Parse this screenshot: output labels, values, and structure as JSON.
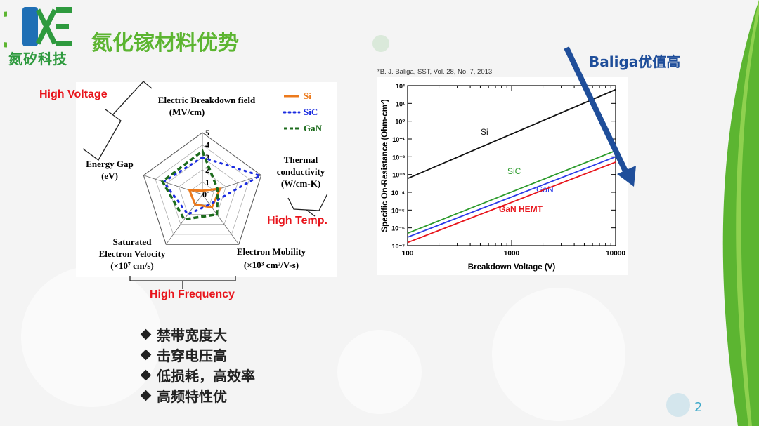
{
  "header": {
    "title": "氮化镓材料优势",
    "logo_text": "氮矽科技"
  },
  "baliga_label": "Baliga优值高",
  "page_number": "2",
  "annotations": {
    "high_voltage": "High Voltage",
    "high_temp": "High Temp.",
    "high_frequency": "High Frequency"
  },
  "radar": {
    "legend": [
      "Si",
      "SiC",
      "GaN"
    ],
    "axes": {
      "breakdown": [
        "Electric Breakdown field",
        "(MV/cm)"
      ],
      "thermal": [
        "Thermal",
        "conductivity",
        "(W/cm-K)"
      ],
      "mobility": [
        "Electron Mobility",
        "(×10³ cm²/V-s)"
      ],
      "velocity": [
        "Saturated",
        "Electron Velocity",
        "(×10⁷ cm/s)"
      ],
      "gap": [
        "Energy Gap",
        "(eV)"
      ]
    },
    "ticks": [
      "0",
      "1",
      "2",
      "3",
      "4",
      "5"
    ]
  },
  "chart_data": [
    {
      "type": "radar",
      "axes": [
        "Electric Breakdown field (MV/cm)",
        "Thermal conductivity (W/cm-K)",
        "Electron Mobility (×10³ cm²/V-s)",
        "Saturated Electron Velocity (×10⁷ cm/s)",
        "Energy Gap (eV)"
      ],
      "range": [
        0,
        5
      ],
      "series": [
        {
          "name": "Si",
          "values": [
            0.3,
            1.5,
            1.3,
            1.0,
            1.1
          ],
          "color": "#ec7a1c"
        },
        {
          "name": "SiC",
          "values": [
            3.0,
            4.9,
            1.0,
            2.0,
            3.3
          ],
          "color": "#1a2be0"
        },
        {
          "name": "GaN",
          "values": [
            3.5,
            1.3,
            2.0,
            2.5,
            3.4
          ],
          "color": "#1c6b1c"
        }
      ]
    },
    {
      "type": "line",
      "citation": "*B. J. Baliga, SST, Vol. 28, No. 7, 2013",
      "xlabel": "Breakdown Voltage (V)",
      "ylabel": "Specific On-Resistance (Ohm-cm²)",
      "x_scale": "log",
      "y_scale": "log",
      "xlim": [
        100,
        10000
      ],
      "ylim": [
        1e-07,
        100
      ],
      "x_ticks": [
        "100",
        "1000",
        "10000"
      ],
      "y_ticks": [
        "10²",
        "10¹",
        "10⁰",
        "10⁻¹",
        "10⁻²",
        "10⁻³",
        "10⁻⁴",
        "10⁻⁵",
        "10⁻⁶",
        "10⁻⁷"
      ],
      "series": [
        {
          "name": "Si",
          "x": [
            100,
            10000
          ],
          "y": [
            0.0006,
            60
          ],
          "color": "#111111"
        },
        {
          "name": "SiC",
          "x": [
            100,
            10000
          ],
          "y": [
            5e-07,
            0.022
          ],
          "color": "#2a9a2a"
        },
        {
          "name": "GaN",
          "x": [
            100,
            10000
          ],
          "y": [
            3e-07,
            0.01
          ],
          "color": "#2a3ae8"
        },
        {
          "name": "GaN HEMT",
          "x": [
            100,
            10000
          ],
          "y": [
            1.5e-07,
            0.005
          ],
          "color": "#e8141b"
        }
      ]
    }
  ],
  "bullets": [
    "禁带宽度大",
    "击穿电压高",
    "低损耗，高效率",
    "高频特性优"
  ],
  "colors": {
    "title_green": "#5cb531",
    "annotation_red": "#e8141b",
    "arrow_blue": "#1f4e9a"
  }
}
